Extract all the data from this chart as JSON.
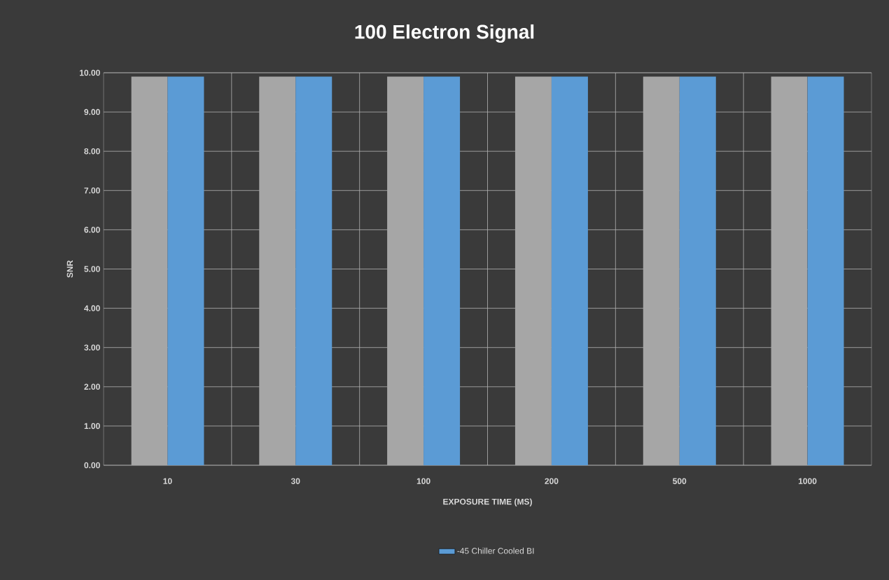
{
  "chart_data": {
    "type": "bar",
    "title": "100 Electron Signal",
    "xlabel": "EXPOSURE TIME (MS)",
    "ylabel": "SNR",
    "categories": [
      "10",
      "30",
      "100",
      "200",
      "500",
      "1000"
    ],
    "series": [
      {
        "color": "#a6a6a6",
        "values": [
          9.9,
          9.9,
          9.9,
          9.9,
          9.9,
          9.9
        ]
      },
      {
        "name": "-45 Chiller Cooled BI",
        "color": "#5b9bd5",
        "values": [
          9.9,
          9.9,
          9.9,
          9.9,
          9.9,
          9.9
        ]
      }
    ],
    "ylim": [
      0,
      10
    ],
    "yticks": [
      {
        "value": 0,
        "label": "0.00"
      },
      {
        "value": 1,
        "label": "1.00"
      },
      {
        "value": 2,
        "label": "2.00"
      },
      {
        "value": 3,
        "label": "3.00"
      },
      {
        "value": 4,
        "label": "4.00"
      },
      {
        "value": 5,
        "label": "5.00"
      },
      {
        "value": 6,
        "label": "6.00"
      },
      {
        "value": 7,
        "label": "7.00"
      },
      {
        "value": 8,
        "label": "8.00"
      },
      {
        "value": 9,
        "label": "9.00"
      },
      {
        "value": 10,
        "label": "10.00"
      }
    ],
    "grid": true,
    "legend": "bottom"
  }
}
